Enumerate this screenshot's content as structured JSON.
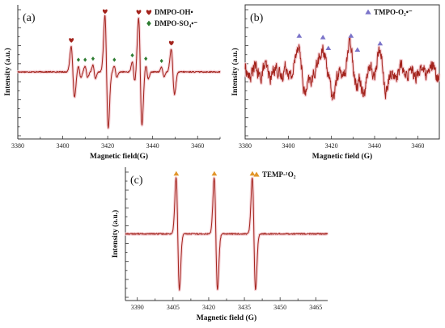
{
  "chart_data": [
    {
      "id": "a",
      "type": "line",
      "panel_label": "(a)",
      "xlabel": "Magnetic field(G)",
      "ylabel": "Intensity (a.u.)",
      "xlim": [
        3380,
        3470
      ],
      "xticks": [
        3380,
        3400,
        3420,
        3440,
        3460
      ],
      "legend": [
        {
          "label": "DMPO-OH•",
          "marker": "heart",
          "color": "#a3231c"
        },
        {
          "label": "DMPO-SO₄•⁻",
          "marker": "diamond",
          "color": "#2e7d32"
        }
      ],
      "peaks": [
        {
          "center": 3404.5,
          "amplitude": 0.45,
          "width": 0.75,
          "marker": "heart"
        },
        {
          "center": 3419.5,
          "amplitude": 1.0,
          "width": 0.75,
          "marker": "heart"
        },
        {
          "center": 3434.5,
          "amplitude": 0.95,
          "width": 0.75,
          "marker": "heart"
        },
        {
          "center": 3449.0,
          "amplitude": 0.4,
          "width": 0.75,
          "marker": "heart"
        },
        {
          "center": 3407.5,
          "amplitude": 0.1,
          "width": 0.6,
          "marker": "diamond"
        },
        {
          "center": 3410.5,
          "amplitude": 0.1,
          "width": 0.6,
          "marker": "diamond"
        },
        {
          "center": 3414.0,
          "amplitude": 0.12,
          "width": 0.6,
          "marker": "diamond"
        },
        {
          "center": 3423.5,
          "amplitude": 0.1,
          "width": 0.6,
          "marker": "diamond"
        },
        {
          "center": 3431.5,
          "amplitude": 0.18,
          "width": 0.6,
          "marker": "diamond"
        },
        {
          "center": 3437.5,
          "amplitude": 0.12,
          "width": 0.6,
          "marker": "diamond"
        },
        {
          "center": 3444.5,
          "amplitude": 0.08,
          "width": 0.6,
          "marker": "diamond"
        }
      ],
      "baseline": "flat"
    },
    {
      "id": "b",
      "type": "line",
      "panel_label": "(b)",
      "xlabel": "Magnetic field (G)",
      "ylabel": "Intensity (a.u.)",
      "xlim": [
        3380,
        3470
      ],
      "xticks": [
        3380,
        3400,
        3420,
        3440,
        3460
      ],
      "legend": [
        {
          "label": "TMPO-O₂•⁻",
          "marker": "triangle",
          "color": "#7b74c9"
        }
      ],
      "peaks": [
        {
          "center": 3406.5,
          "amplitude": 0.8,
          "width": 1.6,
          "marker": "triangle"
        },
        {
          "center": 3417.5,
          "amplitude": 0.75,
          "width": 1.6,
          "marker": "triangle"
        },
        {
          "center": 3420.0,
          "amplitude": 0.4,
          "width": 1.6,
          "marker": "triangle"
        },
        {
          "center": 3430.5,
          "amplitude": 0.8,
          "width": 1.6,
          "marker": "triangle"
        },
        {
          "center": 3433.5,
          "amplitude": 0.35,
          "width": 1.6,
          "marker": "triangle"
        },
        {
          "center": 3444.0,
          "amplitude": 0.55,
          "width": 1.6,
          "marker": "triangle"
        }
      ],
      "baseline": "noisy"
    },
    {
      "id": "c",
      "type": "line",
      "panel_label": "(c)",
      "xlabel": "Magnetic field (G)",
      "ylabel": "Intensity (a.u.)",
      "xlim": [
        3385,
        3470
      ],
      "xticks": [
        3390,
        3405,
        3420,
        3435,
        3450,
        3465
      ],
      "legend": [
        {
          "label": "TEMP-¹O₂",
          "marker": "triangle",
          "color": "#e2962b"
        }
      ],
      "peaks": [
        {
          "center": 3407.0,
          "amplitude": 1.0,
          "width": 0.7,
          "marker": "triangle"
        },
        {
          "center": 3423.0,
          "amplitude": 1.0,
          "width": 0.7,
          "marker": "triangle"
        },
        {
          "center": 3439.0,
          "amplitude": 1.0,
          "width": 0.7,
          "marker": "triangle"
        }
      ],
      "baseline": "flat"
    }
  ],
  "colors": {
    "line": "#a3231c",
    "halo": "#f4c9d0",
    "heart": "#a3231c",
    "diamond": "#2e7d32",
    "triangle_b": "#7b74c9",
    "triangle_c": "#e2962b"
  }
}
